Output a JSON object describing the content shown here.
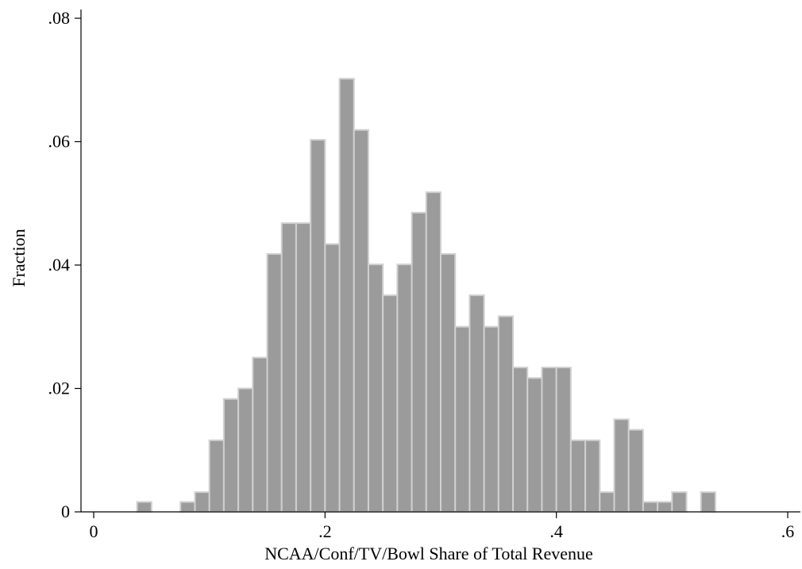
{
  "chart_data": {
    "type": "bar",
    "title": "",
    "xlabel": "NCAA/Conf/TV/Bowl Share of Total Revenue",
    "ylabel": "Fraction",
    "xlim": [
      -0.015,
      0.605
    ],
    "ylim": [
      0,
      0.082
    ],
    "bin_width": 0.0125,
    "x_ticks": [
      0,
      0.2,
      0.4,
      0.6
    ],
    "x_tick_labels": [
      "0",
      ".2",
      ".4",
      ".6"
    ],
    "y_ticks": [
      0,
      0.02,
      0.04,
      0.06,
      0.08
    ],
    "y_tick_labels": [
      "0",
      ".02",
      ".04",
      ".06",
      ".08"
    ],
    "grid": false,
    "legend": "none",
    "bars": [
      {
        "x": 0.0375,
        "value": 0.0016
      },
      {
        "x": 0.075,
        "value": 0.0016
      },
      {
        "x": 0.0875,
        "value": 0.0032
      },
      {
        "x": 0.1,
        "value": 0.0116
      },
      {
        "x": 0.1125,
        "value": 0.0183
      },
      {
        "x": 0.125,
        "value": 0.02
      },
      {
        "x": 0.1375,
        "value": 0.025
      },
      {
        "x": 0.15,
        "value": 0.0418
      },
      {
        "x": 0.1625,
        "value": 0.0468
      },
      {
        "x": 0.175,
        "value": 0.0468
      },
      {
        "x": 0.1875,
        "value": 0.0603
      },
      {
        "x": 0.2,
        "value": 0.0434
      },
      {
        "x": 0.2125,
        "value": 0.0702
      },
      {
        "x": 0.225,
        "value": 0.0619
      },
      {
        "x": 0.2375,
        "value": 0.0401
      },
      {
        "x": 0.25,
        "value": 0.0351
      },
      {
        "x": 0.2625,
        "value": 0.0401
      },
      {
        "x": 0.275,
        "value": 0.0485
      },
      {
        "x": 0.2875,
        "value": 0.0518
      },
      {
        "x": 0.3,
        "value": 0.0418
      },
      {
        "x": 0.3125,
        "value": 0.03
      },
      {
        "x": 0.325,
        "value": 0.0351
      },
      {
        "x": 0.3375,
        "value": 0.03
      },
      {
        "x": 0.35,
        "value": 0.0317
      },
      {
        "x": 0.3625,
        "value": 0.0234
      },
      {
        "x": 0.375,
        "value": 0.0217
      },
      {
        "x": 0.3875,
        "value": 0.0234
      },
      {
        "x": 0.4,
        "value": 0.0234
      },
      {
        "x": 0.4125,
        "value": 0.0116
      },
      {
        "x": 0.425,
        "value": 0.0116
      },
      {
        "x": 0.4375,
        "value": 0.0032
      },
      {
        "x": 0.45,
        "value": 0.015
      },
      {
        "x": 0.4625,
        "value": 0.0133
      },
      {
        "x": 0.475,
        "value": 0.0016
      },
      {
        "x": 0.4875,
        "value": 0.0016
      },
      {
        "x": 0.5,
        "value": 0.0032
      },
      {
        "x": 0.525,
        "value": 0.0032
      }
    ],
    "colors": {
      "bar_fill": "#9b9b9b",
      "bar_outline": "#d0d0d0",
      "axis": "#000000"
    }
  }
}
